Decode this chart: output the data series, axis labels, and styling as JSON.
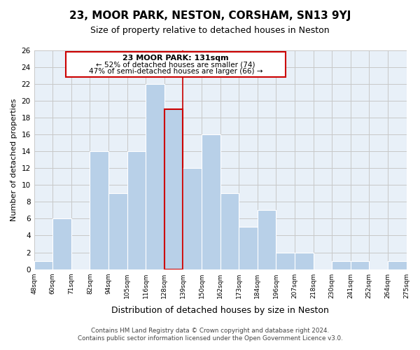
{
  "title": "23, MOOR PARK, NESTON, CORSHAM, SN13 9YJ",
  "subtitle": "Size of property relative to detached houses in Neston",
  "xlabel": "Distribution of detached houses by size in Neston",
  "ylabel": "Number of detached properties",
  "bin_edges": [
    "48sqm",
    "60sqm",
    "71sqm",
    "82sqm",
    "94sqm",
    "105sqm",
    "116sqm",
    "128sqm",
    "139sqm",
    "150sqm",
    "162sqm",
    "173sqm",
    "184sqm",
    "196sqm",
    "207sqm",
    "218sqm",
    "230sqm",
    "241sqm",
    "252sqm",
    "264sqm",
    "275sqm"
  ],
  "bar_heights": [
    1,
    6,
    0,
    14,
    9,
    14,
    22,
    19,
    12,
    16,
    9,
    5,
    7,
    2,
    2,
    0,
    1,
    1,
    0,
    1
  ],
  "bar_color": "#b8d0e8",
  "bar_edge_color": "#ffffff",
  "highlight_bar_index": 7,
  "highlight_line_color": "#cc0000",
  "annotation_title": "23 MOOR PARK: 131sqm",
  "annotation_line1": "← 52% of detached houses are smaller (74)",
  "annotation_line2": "47% of semi-detached houses are larger (66) →",
  "annotation_box_edge_color": "#cc0000",
  "annotation_box_face_color": "#ffffff",
  "ylim": [
    0,
    26
  ],
  "yticks": [
    0,
    2,
    4,
    6,
    8,
    10,
    12,
    14,
    16,
    18,
    20,
    22,
    24,
    26
  ],
  "footer_line1": "Contains HM Land Registry data © Crown copyright and database right 2024.",
  "footer_line2": "Contains public sector information licensed under the Open Government Licence v3.0.",
  "background_color": "#ffffff",
  "plot_bg_color": "#e8f0f8",
  "grid_color": "#c8c8c8"
}
